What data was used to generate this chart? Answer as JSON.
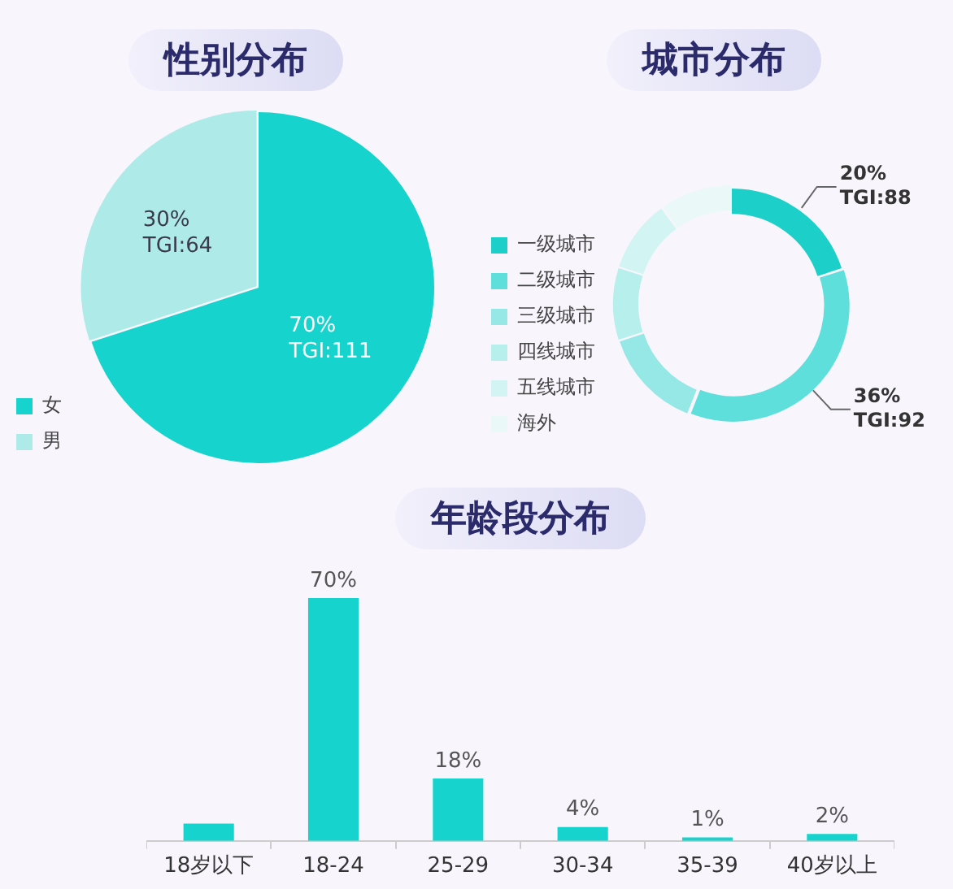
{
  "chart_data": [
    {
      "type": "pie",
      "title": "性别分布",
      "categories": [
        "女",
        "男"
      ],
      "values": [
        70,
        30
      ],
      "colors": [
        "#16d3cd",
        "#aeebe8"
      ],
      "value_labels": [
        "70%\nTGI:111",
        "30%\nTGI:64"
      ],
      "legend": "bottom left"
    },
    {
      "type": "donut",
      "title": "城市分布",
      "categories": [
        "一级城市",
        "二级城市",
        "三级城市",
        "四线城市",
        "五线城市",
        "海外"
      ],
      "values": [
        20,
        36,
        14,
        10,
        10,
        10
      ],
      "colors": [
        "#1ccfc9",
        "#5fdfdb",
        "#95e8e5",
        "#b7efec",
        "#d2f4f2",
        "#eaf8f8"
      ],
      "value_labels": [
        "20%\nTGI:88",
        "36%\nTGI:92",
        null,
        null,
        null,
        null
      ],
      "legend": "bottom left"
    },
    {
      "type": "bar",
      "title": "年龄段分布",
      "categories": [
        "18岁以下",
        "18-24",
        "25-29",
        "30-34",
        "35-39",
        "40岁以上"
      ],
      "values": [
        5,
        70,
        18,
        4,
        1,
        2
      ],
      "color": "#16d3cd",
      "value_labels": [
        null,
        "70%",
        "18%",
        "4%",
        "1%",
        "2%"
      ]
    }
  ]
}
